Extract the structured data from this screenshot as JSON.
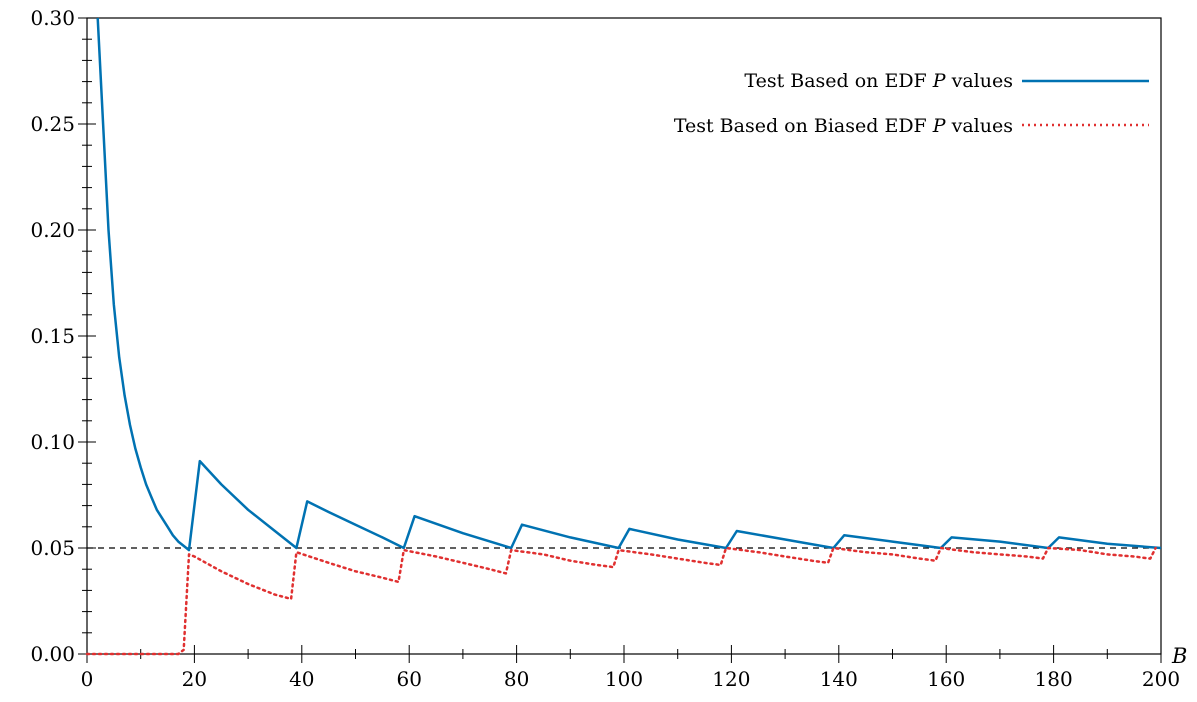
{
  "chart_data": {
    "type": "line",
    "xlabel": "B",
    "ylabel": "",
    "xlim": [
      0,
      200
    ],
    "ylim": [
      0,
      0.3
    ],
    "x_ticks": [
      0,
      20,
      40,
      60,
      80,
      100,
      120,
      140,
      160,
      180,
      200
    ],
    "x_tick_labels": [
      "0",
      "20",
      "40",
      "60",
      "80",
      "100",
      "120",
      "140",
      "160",
      "180",
      "200"
    ],
    "y_ticks": [
      0,
      0.05,
      0.1,
      0.15,
      0.2,
      0.25,
      0.3
    ],
    "y_tick_labels": [
      "0.00",
      "0.05",
      "0.10",
      "0.15",
      "0.20",
      "0.25",
      "0.30"
    ],
    "grid": false,
    "legend_position": "top-right",
    "reference_line": {
      "y": 0.05,
      "style": "dashed",
      "color": "#000000"
    },
    "series": [
      {
        "name_parts": [
          "Test Based on EDF ",
          "P",
          " values"
        ],
        "color": "#0072b2",
        "style": "solid",
        "points": [
          [
            2,
            0.3
          ],
          [
            3,
            0.25
          ],
          [
            4,
            0.2
          ],
          [
            5,
            0.165
          ],
          [
            6,
            0.14
          ],
          [
            7,
            0.122
          ],
          [
            8,
            0.108
          ],
          [
            9,
            0.097
          ],
          [
            10,
            0.088
          ],
          [
            11,
            0.08
          ],
          [
            12,
            0.074
          ],
          [
            13,
            0.068
          ],
          [
            14,
            0.064
          ],
          [
            15,
            0.06
          ],
          [
            16,
            0.056
          ],
          [
            17,
            0.053
          ],
          [
            18,
            0.051
          ],
          [
            19,
            0.049
          ],
          [
            21,
            0.091
          ],
          [
            25,
            0.08
          ],
          [
            30,
            0.068
          ],
          [
            35,
            0.058
          ],
          [
            39,
            0.05
          ],
          [
            41,
            0.072
          ],
          [
            45,
            0.067
          ],
          [
            50,
            0.061
          ],
          [
            55,
            0.055
          ],
          [
            59,
            0.05
          ],
          [
            61,
            0.065
          ],
          [
            70,
            0.057
          ],
          [
            79,
            0.05
          ],
          [
            81,
            0.061
          ],
          [
            90,
            0.055
          ],
          [
            99,
            0.05
          ],
          [
            101,
            0.059
          ],
          [
            110,
            0.054
          ],
          [
            119,
            0.05
          ],
          [
            121,
            0.058
          ],
          [
            130,
            0.054
          ],
          [
            139,
            0.05
          ],
          [
            141,
            0.056
          ],
          [
            150,
            0.053
          ],
          [
            159,
            0.05
          ],
          [
            161,
            0.055
          ],
          [
            170,
            0.053
          ],
          [
            179,
            0.05
          ],
          [
            181,
            0.055
          ],
          [
            190,
            0.052
          ],
          [
            200,
            0.05
          ]
        ]
      },
      {
        "name_parts": [
          "Test Based on Biased EDF ",
          "P",
          " values"
        ],
        "color": "#e03030",
        "style": "dotted",
        "points": [
          [
            0,
            0.0
          ],
          [
            17,
            0.0
          ],
          [
            18,
            0.002
          ],
          [
            19,
            0.047
          ],
          [
            20,
            0.046
          ],
          [
            25,
            0.039
          ],
          [
            30,
            0.033
          ],
          [
            35,
            0.028
          ],
          [
            38,
            0.026
          ],
          [
            39,
            0.048
          ],
          [
            45,
            0.043
          ],
          [
            50,
            0.039
          ],
          [
            55,
            0.036
          ],
          [
            58,
            0.034
          ],
          [
            59,
            0.049
          ],
          [
            65,
            0.046
          ],
          [
            70,
            0.043
          ],
          [
            75,
            0.04
          ],
          [
            78,
            0.038
          ],
          [
            79,
            0.049
          ],
          [
            85,
            0.047
          ],
          [
            90,
            0.044
          ],
          [
            95,
            0.042
          ],
          [
            98,
            0.041
          ],
          [
            99,
            0.049
          ],
          [
            105,
            0.047
          ],
          [
            110,
            0.045
          ],
          [
            115,
            0.043
          ],
          [
            118,
            0.042
          ],
          [
            119,
            0.05
          ],
          [
            125,
            0.048
          ],
          [
            130,
            0.046
          ],
          [
            135,
            0.044
          ],
          [
            138,
            0.043
          ],
          [
            139,
            0.05
          ],
          [
            145,
            0.048
          ],
          [
            150,
            0.047
          ],
          [
            155,
            0.045
          ],
          [
            158,
            0.044
          ],
          [
            159,
            0.05
          ],
          [
            165,
            0.048
          ],
          [
            170,
            0.047
          ],
          [
            175,
            0.046
          ],
          [
            178,
            0.045
          ],
          [
            179,
            0.05
          ],
          [
            185,
            0.049
          ],
          [
            190,
            0.047
          ],
          [
            195,
            0.046
          ],
          [
            198,
            0.045
          ],
          [
            199,
            0.05
          ]
        ]
      }
    ]
  }
}
